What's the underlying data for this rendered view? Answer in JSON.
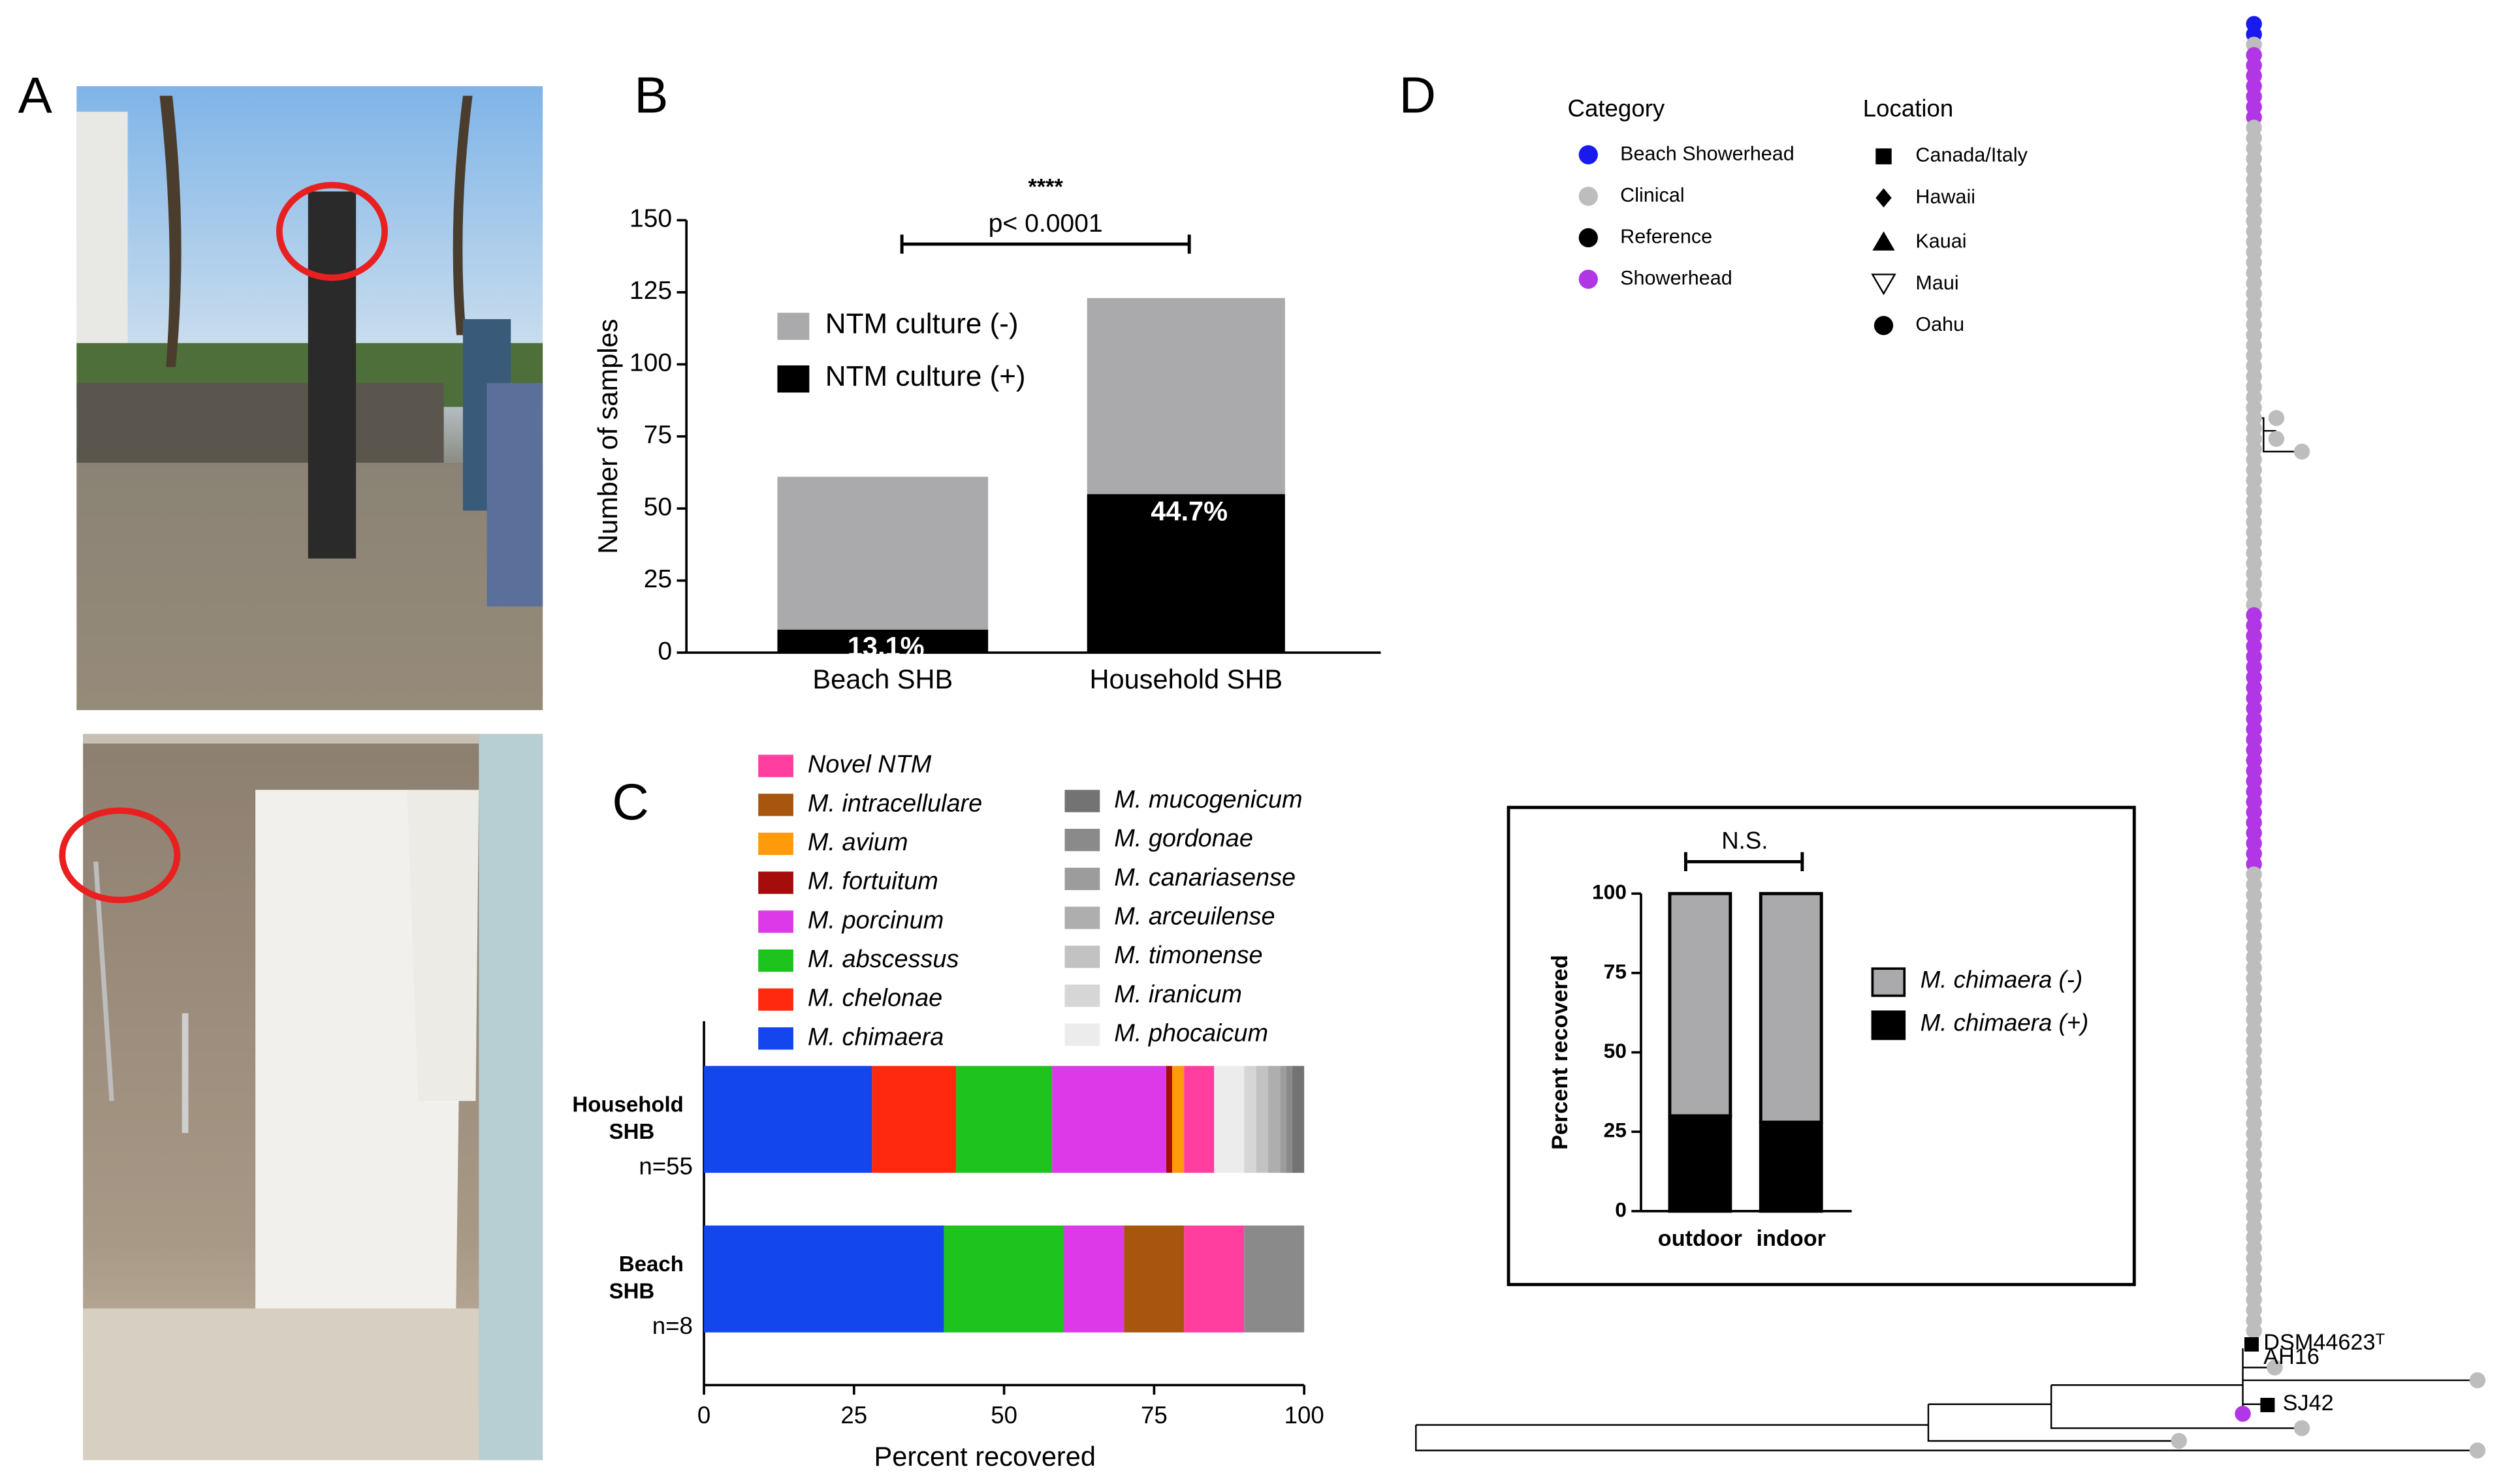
{
  "panel_labels": [
    "A",
    "B",
    "C",
    "D"
  ],
  "chart_data": [
    {
      "type": "bar",
      "stacked": true,
      "ylabel": "Number of samples",
      "categories": [
        "Beach SHB",
        "Household SHB"
      ],
      "series": [
        {
          "name": "NTM culture (+)",
          "color": "#000000",
          "values": [
            8,
            55
          ]
        },
        {
          "name": "NTM culture (-)",
          "color": "#aaaaac",
          "values": [
            53,
            68
          ]
        }
      ],
      "annotations": [
        "13.1%",
        "44.7%"
      ],
      "significance": {
        "stars": "****",
        "text": "p< 0.0001"
      },
      "ylim": [
        0,
        150
      ],
      "yticks": [
        0,
        25,
        50,
        75,
        100,
        125,
        150
      ],
      "legend": "upper left"
    },
    {
      "type": "barh",
      "stacked": true,
      "xlabel": "Percent recovered",
      "categories": [
        "Household SHB",
        "Beach SHB"
      ],
      "sample_sizes": [
        "n=55",
        "n=8"
      ],
      "series": [
        {
          "name": "M. chimaera",
          "color": "#1446ee",
          "values": [
            28,
            40
          ]
        },
        {
          "name": "M. chelonae",
          "color": "#ff2a0e",
          "values": [
            14,
            0
          ]
        },
        {
          "name": "M. abscessus",
          "color": "#1ec31e",
          "values": [
            16,
            20
          ]
        },
        {
          "name": "M. porcinum",
          "color": "#dc3ae8",
          "values": [
            19,
            10
          ]
        },
        {
          "name": "M. fortuitum",
          "color": "#a50d0d",
          "values": [
            1,
            0
          ]
        },
        {
          "name": "M. avium",
          "color": "#ff9a0a",
          "values": [
            2,
            0
          ]
        },
        {
          "name": "M. intracellulare",
          "color": "#a8560e",
          "values": [
            0,
            10
          ]
        },
        {
          "name": "Novel NTM",
          "color": "#ff3ea0",
          "values": [
            5,
            10
          ]
        },
        {
          "name": "M. phocaicum",
          "color": "#ececec",
          "values": [
            5,
            0
          ]
        },
        {
          "name": "M. iranicum",
          "color": "#d6d6d6",
          "values": [
            2,
            0
          ]
        },
        {
          "name": "M. timonense",
          "color": "#c2c2c2",
          "values": [
            2,
            0
          ]
        },
        {
          "name": "M. arceuilense",
          "color": "#aeaeae",
          "values": [
            2,
            0
          ]
        },
        {
          "name": "M. canariasense",
          "color": "#9c9c9c",
          "values": [
            1,
            0
          ]
        },
        {
          "name": "M. gordonae",
          "color": "#8a8a8a",
          "values": [
            1,
            10
          ]
        },
        {
          "name": "M. mucogenicum",
          "color": "#737373",
          "values": [
            2,
            0
          ]
        }
      ],
      "xlim": [
        0,
        100
      ],
      "xticks": [
        0,
        25,
        50,
        75,
        100
      ]
    },
    {
      "type": "bar",
      "stacked": true,
      "ylabel": "Percent recovered",
      "categories": [
        "outdoor",
        "indoor"
      ],
      "series": [
        {
          "name": "M. chimaera (+)",
          "color": "#000000",
          "values": [
            30,
            28
          ]
        },
        {
          "name": "M. chimaera (-)",
          "color": "#aaaaac",
          "values": [
            70,
            72
          ]
        }
      ],
      "annotation": "N.S.",
      "ylim": [
        0,
        100
      ],
      "yticks": [
        0,
        25,
        50,
        75,
        100
      ],
      "legend": "right"
    }
  ],
  "tree": {
    "category_title": "Category",
    "categories": [
      {
        "name": "Beach Showerhead",
        "color": "#1a1aee"
      },
      {
        "name": "Clinical",
        "color": "#bdbdbd"
      },
      {
        "name": "Reference",
        "color": "#000000"
      },
      {
        "name": "Showerhead",
        "color": "#b036e6"
      }
    ],
    "location_title": "Location",
    "locations": [
      {
        "name": "Canada/Italy",
        "marker": "square"
      },
      {
        "name": "Hawaii",
        "marker": "diamond"
      },
      {
        "name": "Kauai",
        "marker": "triangle"
      },
      {
        "name": "Maui",
        "marker": "triangle-down-open"
      },
      {
        "name": "Oahu",
        "marker": "circle"
      }
    ],
    "tip_labels": [
      "DSM44623ᵀ",
      "AH16",
      "SJ42"
    ]
  }
}
